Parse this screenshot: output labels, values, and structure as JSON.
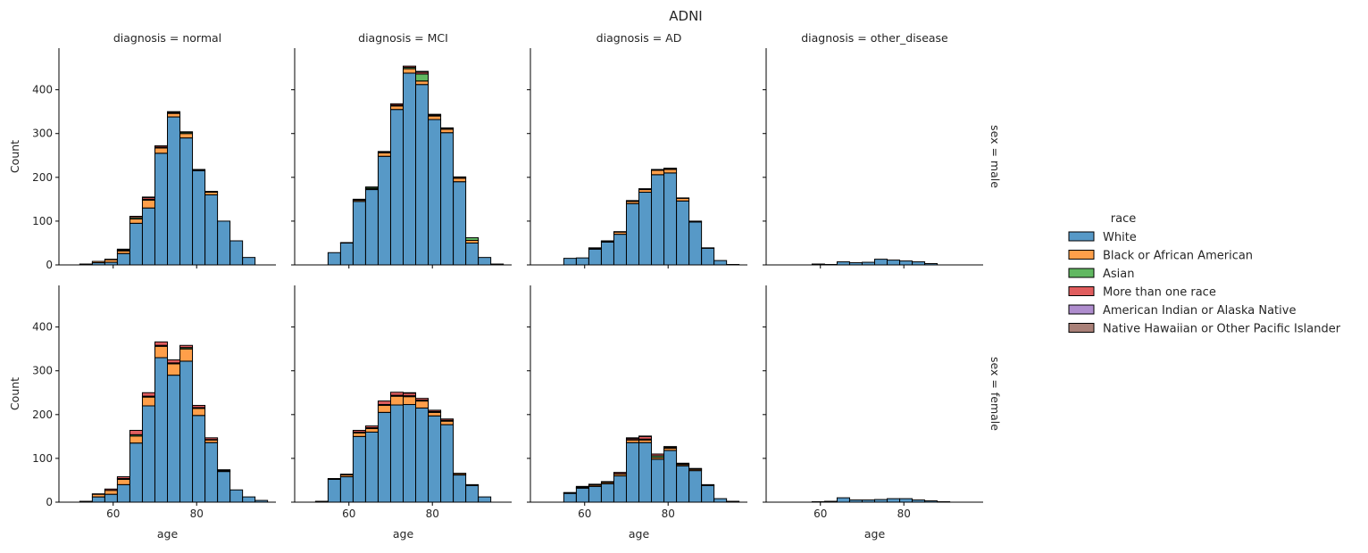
{
  "title": "ADNI",
  "legend": {
    "title": "race",
    "placement": "center-right",
    "items": [
      {
        "name": "White",
        "color": "#1f77b4"
      },
      {
        "name": "Black or African American",
        "color": "#ff7f0e"
      },
      {
        "name": "Asian",
        "color": "#2ca02c"
      },
      {
        "name": "More than one race",
        "color": "#d62728"
      },
      {
        "name": "American Indian or Alaska Native",
        "color": "#9467bd"
      },
      {
        "name": "Native Hawaiian or Other Pacific Islander",
        "color": "#8c564b"
      }
    ]
  },
  "chart_data": {
    "type": "bar",
    "subtype": "stacked histogram facet grid",
    "xlabel": "age",
    "ylabel": "Count",
    "xlim": [
      47,
      99
    ],
    "ylim": [
      0,
      495
    ],
    "xticks": [
      60,
      80
    ],
    "yticks": [
      0,
      100,
      200,
      300,
      400
    ],
    "grid": false,
    "col_labels": [
      "diagnosis = normal",
      "diagnosis = MCI",
      "diagnosis = AD",
      "diagnosis = other_disease"
    ],
    "row_labels": [
      "sex = male",
      "sex = female"
    ],
    "bin_edges": [
      49,
      52,
      55,
      58,
      61,
      64,
      67,
      70,
      73,
      76,
      79,
      82,
      85,
      88,
      91,
      94,
      97
    ],
    "series_names": [
      "White",
      "Black or African American",
      "Asian",
      "More than one race",
      "American Indian or Alaska Native",
      "Native Hawaiian or Other Pacific Islander"
    ],
    "panels": [
      {
        "row": 0,
        "col": 0,
        "series": [
          [
            0,
            2,
            5,
            6,
            26,
            95,
            130,
            255,
            338,
            290,
            215,
            160,
            100,
            55,
            17,
            0
          ],
          [
            0,
            0,
            3,
            6,
            6,
            10,
            18,
            12,
            8,
            10,
            2,
            6,
            0,
            0,
            0,
            0
          ],
          [
            0,
            0,
            0,
            0,
            2,
            3,
            2,
            2,
            2,
            3,
            1,
            2,
            0,
            0,
            0,
            0
          ],
          [
            0,
            0,
            0,
            1,
            2,
            3,
            4,
            3,
            2,
            1,
            0,
            0,
            0,
            0,
            0,
            0
          ],
          [
            0,
            0,
            0,
            0,
            0,
            0,
            1,
            0,
            0,
            0,
            0,
            0,
            0,
            0,
            0,
            0
          ],
          [
            0,
            0,
            0,
            0,
            0,
            0,
            0,
            0,
            0,
            0,
            0,
            0,
            0,
            0,
            0,
            0
          ]
        ]
      },
      {
        "row": 0,
        "col": 1,
        "series": [
          [
            0,
            0,
            28,
            50,
            145,
            172,
            248,
            355,
            438,
            412,
            332,
            302,
            190,
            50,
            17,
            2
          ],
          [
            0,
            0,
            0,
            1,
            3,
            2,
            8,
            8,
            10,
            8,
            8,
            8,
            8,
            6,
            0,
            0
          ],
          [
            0,
            0,
            0,
            0,
            2,
            3,
            1,
            2,
            3,
            16,
            2,
            2,
            2,
            6,
            0,
            0
          ],
          [
            0,
            0,
            0,
            0,
            0,
            1,
            2,
            3,
            3,
            4,
            2,
            1,
            1,
            0,
            0,
            0
          ],
          [
            0,
            0,
            0,
            0,
            0,
            0,
            0,
            0,
            0,
            1,
            0,
            0,
            0,
            0,
            0,
            0
          ],
          [
            0,
            0,
            0,
            0,
            0,
            0,
            0,
            0,
            0,
            1,
            0,
            0,
            0,
            0,
            0,
            0
          ]
        ]
      },
      {
        "row": 0,
        "col": 2,
        "series": [
          [
            0,
            0,
            15,
            16,
            36,
            52,
            70,
            140,
            166,
            206,
            210,
            146,
            98,
            38,
            10,
            1
          ],
          [
            0,
            0,
            0,
            0,
            2,
            2,
            5,
            5,
            6,
            10,
            8,
            6,
            2,
            1,
            0,
            0
          ],
          [
            0,
            0,
            0,
            0,
            0,
            0,
            0,
            1,
            1,
            1,
            2,
            0,
            0,
            0,
            0,
            0
          ],
          [
            0,
            0,
            0,
            0,
            1,
            1,
            1,
            1,
            1,
            1,
            1,
            1,
            0,
            0,
            0,
            0
          ],
          [
            0,
            0,
            0,
            0,
            0,
            0,
            0,
            0,
            0,
            0,
            0,
            0,
            0,
            0,
            0,
            0
          ],
          [
            0,
            0,
            0,
            0,
            0,
            0,
            0,
            0,
            0,
            0,
            0,
            0,
            0,
            0,
            0,
            0
          ]
        ]
      },
      {
        "row": 0,
        "col": 3,
        "series": [
          [
            0,
            0,
            0,
            2,
            1,
            7,
            5,
            6,
            13,
            11,
            9,
            7,
            3,
            0,
            0,
            0
          ],
          [
            0,
            0,
            0,
            0,
            0,
            0,
            0,
            0,
            0,
            0,
            0,
            0,
            0,
            0,
            0,
            0
          ],
          [
            0,
            0,
            0,
            0,
            0,
            0,
            0,
            0,
            0,
            0,
            0,
            0,
            0,
            0,
            0,
            0
          ],
          [
            0,
            0,
            0,
            0,
            0,
            0,
            0,
            0,
            0,
            0,
            0,
            0,
            0,
            0,
            0,
            0
          ],
          [
            0,
            0,
            0,
            0,
            0,
            0,
            0,
            0,
            0,
            0,
            0,
            0,
            0,
            0,
            0,
            0
          ],
          [
            0,
            0,
            0,
            0,
            0,
            0,
            0,
            0,
            0,
            0,
            0,
            0,
            0,
            0,
            0,
            0
          ]
        ]
      },
      {
        "row": 1,
        "col": 0,
        "series": [
          [
            0,
            2,
            12,
            18,
            40,
            135,
            220,
            330,
            290,
            322,
            198,
            136,
            70,
            28,
            12,
            4
          ],
          [
            0,
            0,
            6,
            9,
            12,
            16,
            20,
            26,
            26,
            28,
            16,
            6,
            2,
            0,
            0,
            0
          ],
          [
            0,
            0,
            0,
            0,
            2,
            3,
            2,
            2,
            2,
            3,
            2,
            1,
            0,
            0,
            0,
            0
          ],
          [
            0,
            0,
            1,
            3,
            4,
            10,
            8,
            8,
            7,
            5,
            5,
            4,
            2,
            0,
            0,
            0
          ],
          [
            0,
            0,
            0,
            0,
            0,
            0,
            0,
            0,
            0,
            0,
            0,
            0,
            0,
            0,
            0,
            0
          ],
          [
            0,
            0,
            0,
            0,
            0,
            0,
            0,
            0,
            0,
            0,
            0,
            0,
            0,
            0,
            0,
            0
          ]
        ]
      },
      {
        "row": 1,
        "col": 1,
        "series": [
          [
            0,
            2,
            52,
            58,
            150,
            160,
            205,
            222,
            223,
            215,
            197,
            177,
            62,
            38,
            12,
            0
          ],
          [
            0,
            0,
            2,
            4,
            8,
            8,
            16,
            20,
            18,
            16,
            8,
            8,
            3,
            2,
            0,
            0
          ],
          [
            0,
            0,
            0,
            0,
            2,
            2,
            2,
            2,
            2,
            2,
            2,
            2,
            0,
            0,
            0,
            0
          ],
          [
            0,
            0,
            0,
            2,
            4,
            4,
            8,
            7,
            6,
            4,
            3,
            3,
            1,
            0,
            0,
            0
          ],
          [
            0,
            0,
            0,
            0,
            0,
            0,
            0,
            0,
            1,
            0,
            0,
            0,
            0,
            0,
            0,
            0
          ],
          [
            0,
            0,
            0,
            0,
            0,
            0,
            0,
            0,
            0,
            0,
            0,
            0,
            0,
            0,
            0,
            0
          ]
        ]
      },
      {
        "row": 1,
        "col": 2,
        "series": [
          [
            0,
            0,
            20,
            32,
            36,
            42,
            60,
            136,
            136,
            98,
            118,
            83,
            72,
            38,
            8,
            2
          ],
          [
            0,
            0,
            1,
            2,
            3,
            3,
            4,
            6,
            6,
            4,
            5,
            3,
            3,
            2,
            0,
            0
          ],
          [
            0,
            0,
            0,
            0,
            0,
            0,
            1,
            1,
            2,
            4,
            2,
            1,
            1,
            0,
            0,
            0
          ],
          [
            0,
            0,
            1,
            2,
            2,
            2,
            3,
            3,
            6,
            4,
            2,
            2,
            1,
            0,
            0,
            0
          ],
          [
            0,
            0,
            0,
            0,
            0,
            0,
            0,
            1,
            1,
            0,
            0,
            0,
            0,
            0,
            0,
            0
          ],
          [
            0,
            0,
            0,
            0,
            0,
            0,
            0,
            0,
            0,
            0,
            0,
            0,
            0,
            0,
            0,
            0
          ]
        ]
      },
      {
        "row": 1,
        "col": 3,
        "series": [
          [
            0,
            0,
            0,
            1,
            2,
            10,
            5,
            5,
            6,
            8,
            8,
            5,
            3,
            1,
            0,
            0
          ],
          [
            0,
            0,
            0,
            0,
            0,
            0,
            0,
            0,
            0,
            0,
            0,
            0,
            0,
            0,
            0,
            0
          ],
          [
            0,
            0,
            0,
            0,
            0,
            0,
            0,
            0,
            0,
            0,
            0,
            0,
            0,
            0,
            0,
            0
          ],
          [
            0,
            0,
            0,
            0,
            0,
            0,
            0,
            0,
            0,
            0,
            0,
            0,
            0,
            0,
            0,
            0
          ],
          [
            0,
            0,
            0,
            0,
            0,
            0,
            0,
            0,
            0,
            0,
            0,
            0,
            0,
            0,
            0,
            0
          ],
          [
            0,
            0,
            0,
            0,
            0,
            0,
            0,
            0,
            0,
            0,
            0,
            0,
            0,
            0,
            0,
            0
          ]
        ]
      }
    ]
  }
}
